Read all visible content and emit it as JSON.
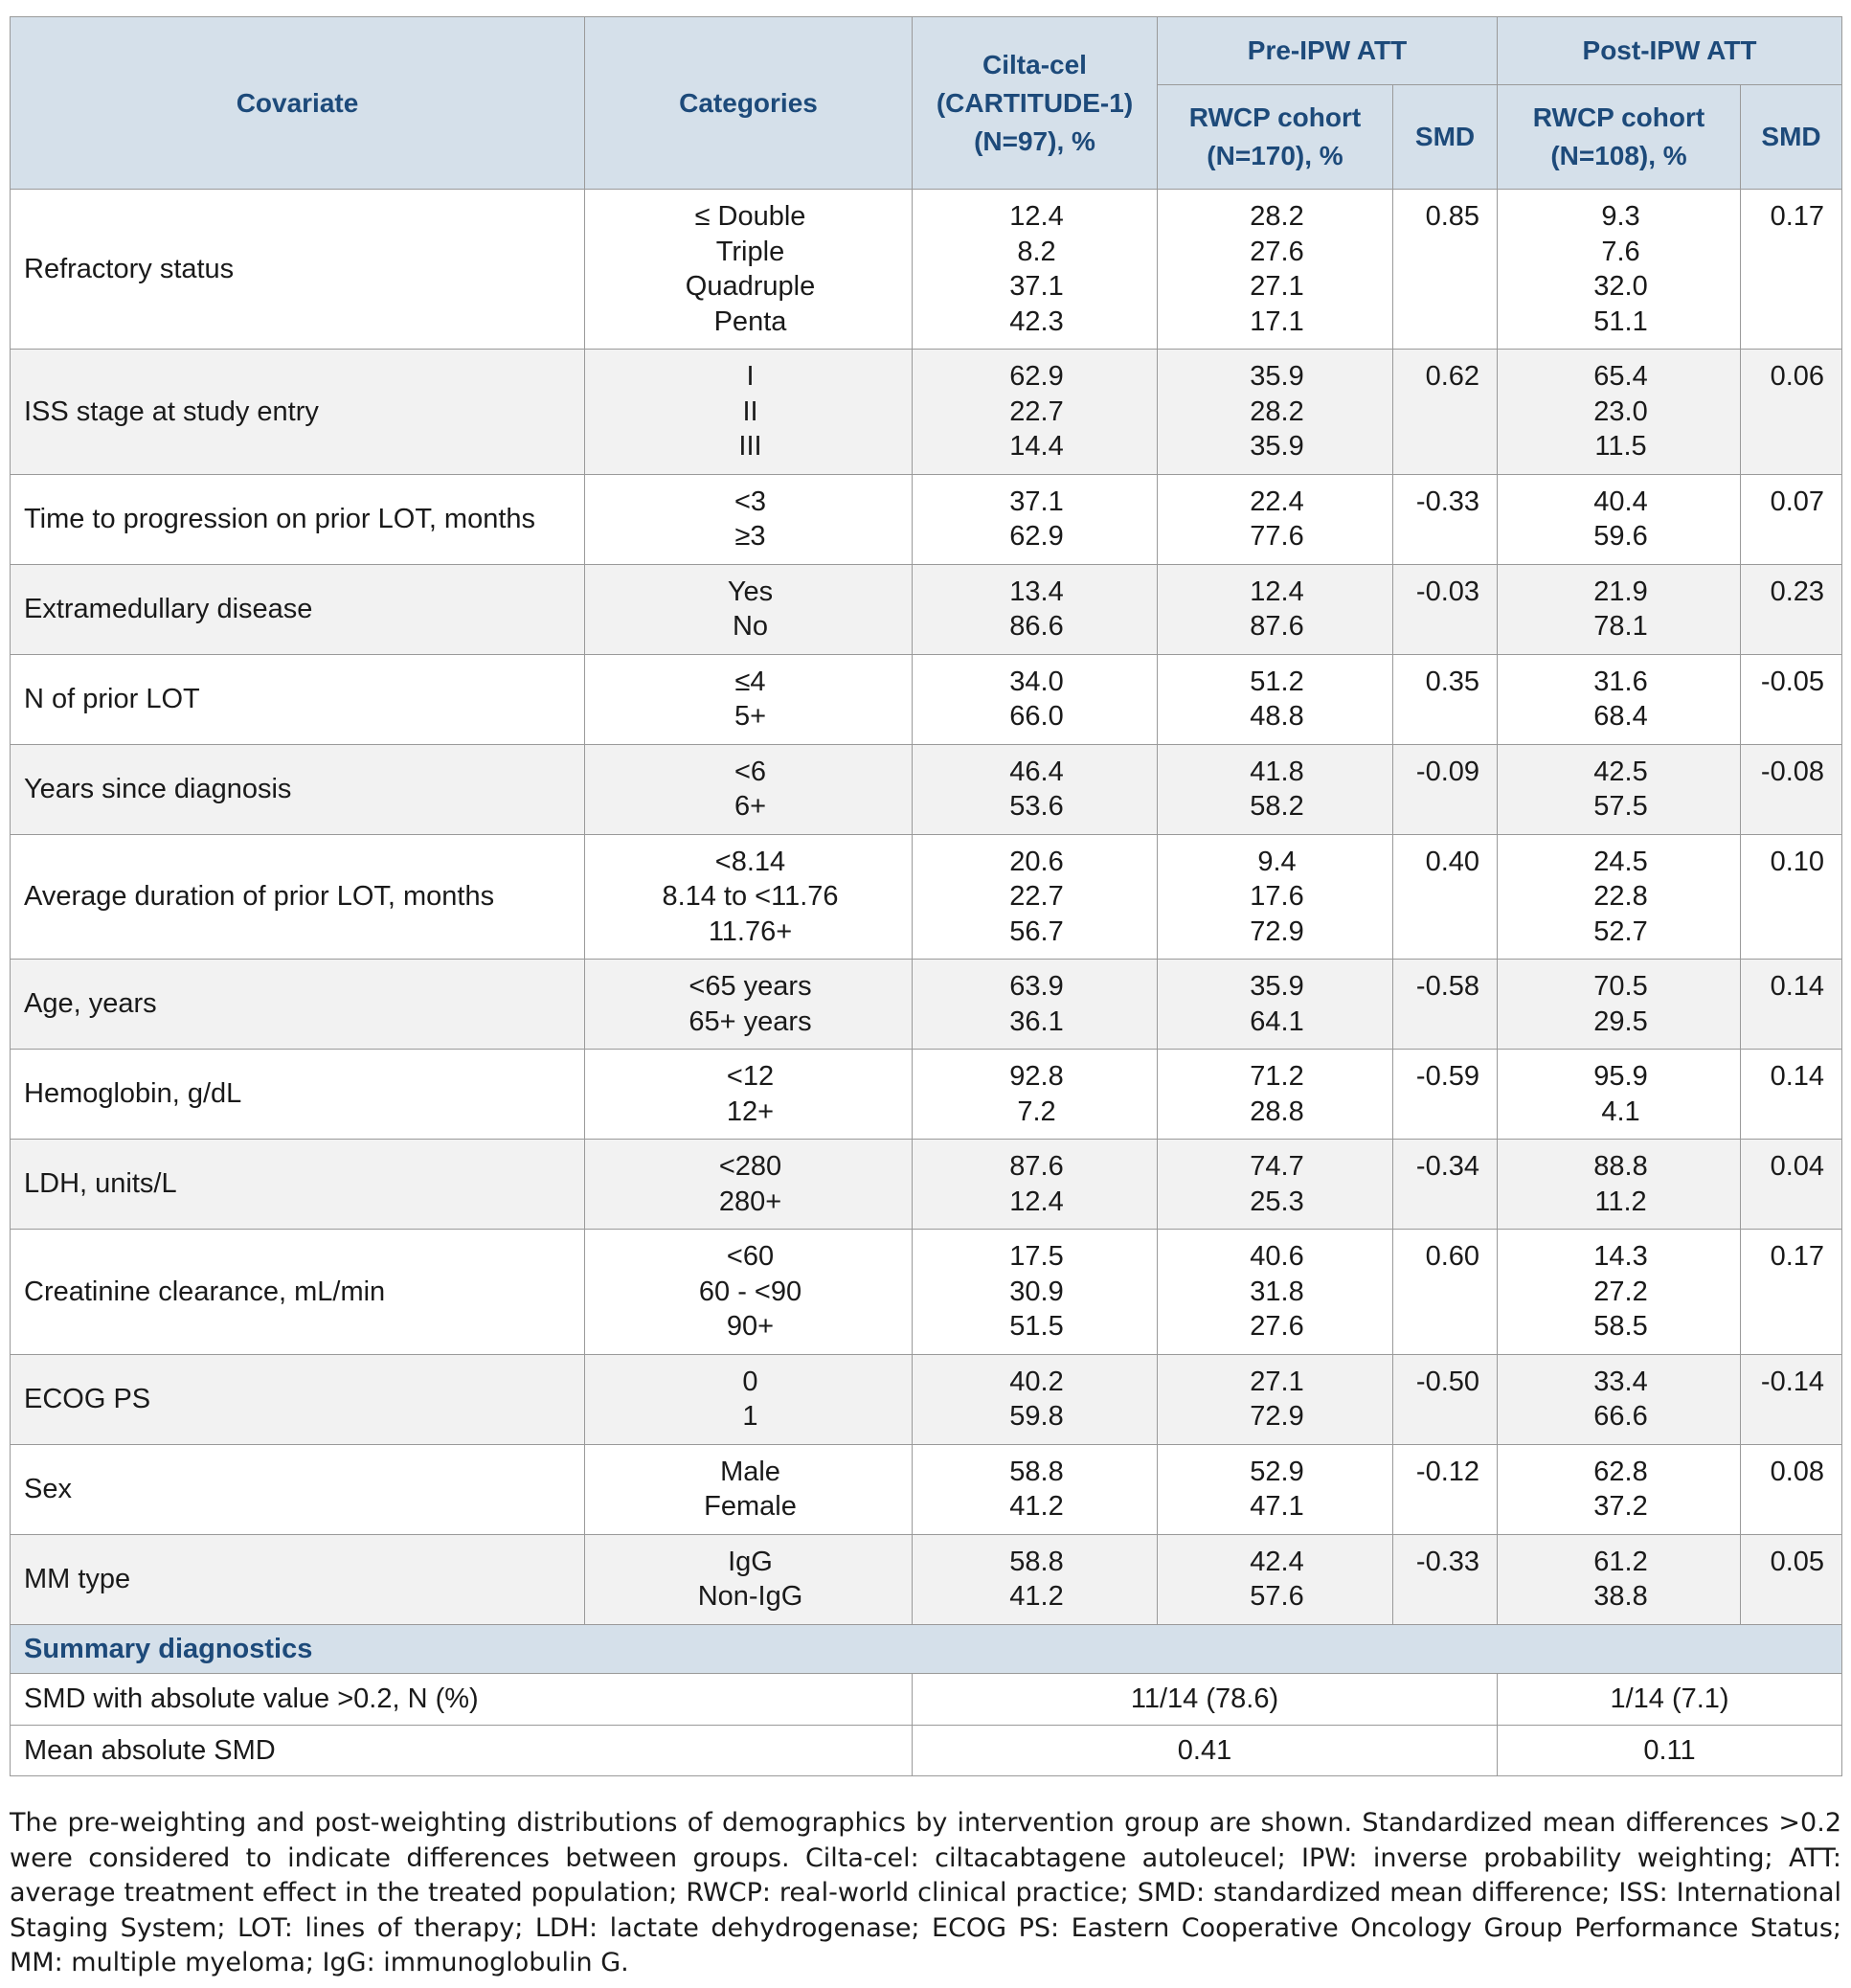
{
  "header": {
    "covariate": "Covariate",
    "categories": "Categories",
    "ciltacel": [
      "Cilta-cel",
      "(CARTITUDE-1)",
      "(N=97), %"
    ],
    "pre_group": "Pre-IPW ATT",
    "post_group": "Post-IPW ATT",
    "pre_rwcp": [
      "RWCP cohort",
      "(N=170), %"
    ],
    "post_rwcp": [
      "RWCP cohort",
      "(N=108), %"
    ],
    "smd": "SMD"
  },
  "rows": [
    {
      "covariate": "Refractory status",
      "categories": [
        "≤ Double",
        "Triple",
        "Quadruple",
        "Penta"
      ],
      "cilta": [
        "12.4",
        "8.2",
        "37.1",
        "42.3"
      ],
      "pre": [
        "28.2",
        "27.6",
        "27.1",
        "17.1"
      ],
      "pre_smd": "0.85",
      "post": [
        "9.3",
        "7.6",
        "32.0",
        "51.1"
      ],
      "post_smd": "0.17"
    },
    {
      "covariate": "ISS stage at study entry",
      "categories": [
        "I",
        "II",
        "III"
      ],
      "cilta": [
        "62.9",
        "22.7",
        "14.4"
      ],
      "pre": [
        "35.9",
        "28.2",
        "35.9"
      ],
      "pre_smd": "0.62",
      "post": [
        "65.4",
        "23.0",
        "11.5"
      ],
      "post_smd": "0.06"
    },
    {
      "covariate": "Time to progression on prior LOT, months",
      "categories": [
        "<3",
        "≥3"
      ],
      "cilta": [
        "37.1",
        "62.9"
      ],
      "pre": [
        "22.4",
        "77.6"
      ],
      "pre_smd": "-0.33",
      "post": [
        "40.4",
        "59.6"
      ],
      "post_smd": "0.07"
    },
    {
      "covariate": "Extramedullary disease",
      "categories": [
        "Yes",
        "No"
      ],
      "cilta": [
        "13.4",
        "86.6"
      ],
      "pre": [
        "12.4",
        "87.6"
      ],
      "pre_smd": "-0.03",
      "post": [
        "21.9",
        "78.1"
      ],
      "post_smd": "0.23"
    },
    {
      "covariate": "N of prior LOT",
      "categories": [
        "≤4",
        "5+"
      ],
      "cilta": [
        "34.0",
        "66.0"
      ],
      "pre": [
        "51.2",
        "48.8"
      ],
      "pre_smd": "0.35",
      "post": [
        "31.6",
        "68.4"
      ],
      "post_smd": "-0.05"
    },
    {
      "covariate": "Years since diagnosis",
      "categories": [
        "<6",
        "6+"
      ],
      "cilta": [
        "46.4",
        "53.6"
      ],
      "pre": [
        "41.8",
        "58.2"
      ],
      "pre_smd": "-0.09",
      "post": [
        "42.5",
        "57.5"
      ],
      "post_smd": "-0.08"
    },
    {
      "covariate": "Average duration of prior LOT, months",
      "categories": [
        "<8.14",
        "8.14 to <11.76",
        "11.76+"
      ],
      "cilta": [
        "20.6",
        "22.7",
        "56.7"
      ],
      "pre": [
        "9.4",
        "17.6",
        "72.9"
      ],
      "pre_smd": "0.40",
      "post": [
        "24.5",
        "22.8",
        "52.7"
      ],
      "post_smd": "0.10"
    },
    {
      "covariate": "Age, years",
      "categories": [
        "<65 years",
        "65+ years"
      ],
      "cilta": [
        "63.9",
        "36.1"
      ],
      "pre": [
        "35.9",
        "64.1"
      ],
      "pre_smd": "-0.58",
      "post": [
        "70.5",
        "29.5"
      ],
      "post_smd": "0.14"
    },
    {
      "covariate": "Hemoglobin, g/dL",
      "categories": [
        "<12",
        "12+"
      ],
      "cilta": [
        "92.8",
        "7.2"
      ],
      "pre": [
        "71.2",
        "28.8"
      ],
      "pre_smd": "-0.59",
      "post": [
        "95.9",
        "4.1"
      ],
      "post_smd": "0.14"
    },
    {
      "covariate": "LDH, units/L",
      "categories": [
        "<280",
        "280+"
      ],
      "cilta": [
        "87.6",
        "12.4"
      ],
      "pre": [
        "74.7",
        "25.3"
      ],
      "pre_smd": "-0.34",
      "post": [
        "88.8",
        "11.2"
      ],
      "post_smd": "0.04"
    },
    {
      "covariate": "Creatinine clearance, mL/min",
      "categories": [
        "<60",
        "60 - <90",
        "90+"
      ],
      "cilta": [
        "17.5",
        "30.9",
        "51.5"
      ],
      "pre": [
        "40.6",
        "31.8",
        "27.6"
      ],
      "pre_smd": "0.60",
      "post": [
        "14.3",
        "27.2",
        "58.5"
      ],
      "post_smd": "0.17"
    },
    {
      "covariate": "ECOG PS",
      "categories": [
        "0",
        "1"
      ],
      "cilta": [
        "40.2",
        "59.8"
      ],
      "pre": [
        "27.1",
        "72.9"
      ],
      "pre_smd": "-0.50",
      "post": [
        "33.4",
        "66.6"
      ],
      "post_smd": "-0.14"
    },
    {
      "covariate": "Sex",
      "categories": [
        "Male",
        "Female"
      ],
      "cilta": [
        "58.8",
        "41.2"
      ],
      "pre": [
        "52.9",
        "47.1"
      ],
      "pre_smd": "-0.12",
      "post": [
        "62.8",
        "37.2"
      ],
      "post_smd": "0.08"
    },
    {
      "covariate": "MM type",
      "categories": [
        "IgG",
        "Non-IgG"
      ],
      "cilta": [
        "58.8",
        "41.2"
      ],
      "pre": [
        "42.4",
        "57.6"
      ],
      "pre_smd": "-0.33",
      "post": [
        "61.2",
        "38.8"
      ],
      "post_smd": "0.05"
    }
  ],
  "summary": {
    "title": "Summary diagnostics",
    "rows": [
      {
        "label": "SMD with absolute value >0.2, N (%)",
        "pre": "11/14 (78.6)",
        "post": "1/14 (7.1)"
      },
      {
        "label": "Mean absolute SMD",
        "pre": "0.41",
        "post": "0.11"
      }
    ]
  },
  "caption": "The pre-weighting and post-weighting distributions of demographics by intervention group are shown. Standardized mean differences >0.2 were considered to indicate differences between groups. Cilta-cel: ciltacabtagene autoleucel; IPW: inverse probability weighting; ATT: average treatment effect in the treated population; RWCP: real-world clinical practice; SMD: standardized mean difference; ISS: International Staging System; LOT: lines of therapy; LDH: lactate dehydrogenase; ECOG PS: Eastern Cooperative Oncology Group Performance Status; MM: multiple myeloma; IgG: immunoglobulin G."
}
